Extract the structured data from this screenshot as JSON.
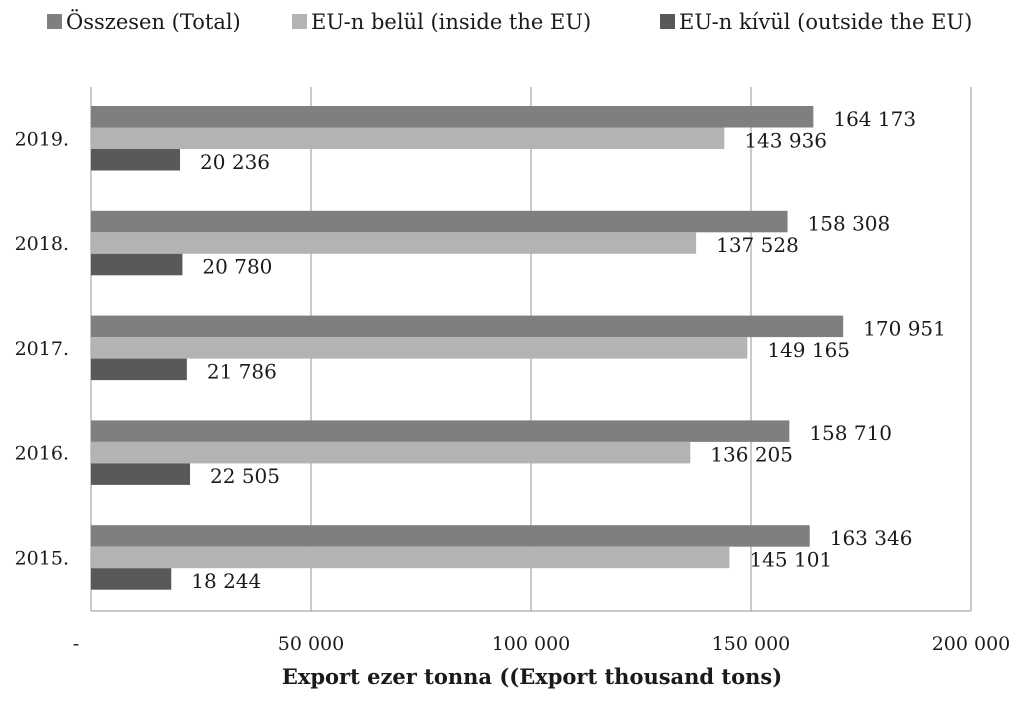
{
  "chart_data": {
    "type": "bar",
    "orientation": "horizontal",
    "title": "",
    "xlabel": "Export ezer tonna ((Export thousand tons)",
    "ylabel": "",
    "xlim": [
      0,
      200000
    ],
    "x_ticks": [
      0,
      50000,
      100000,
      150000,
      200000
    ],
    "x_tick_labels": [
      "-",
      "50 000",
      "100 000",
      "150 000",
      "200 000"
    ],
    "grid": "vertical",
    "legend_position": "top",
    "categories": [
      "2019.",
      "2018.",
      "2017.",
      "2016.",
      "2015."
    ],
    "series": [
      {
        "name": "Összesen (Total)",
        "color": "#7f7f7f",
        "values": [
          164173,
          158308,
          170951,
          158710,
          163346
        ],
        "labels": [
          "164 173",
          "158 308",
          "170 951",
          "158 710",
          "163 346"
        ]
      },
      {
        "name": "EU-n belül (inside the EU)",
        "color": "#b3b3b3",
        "values": [
          143936,
          137528,
          149165,
          136205,
          145101
        ],
        "labels": [
          "143 936",
          "137 528",
          "149 165",
          "136 205",
          "145 101"
        ]
      },
      {
        "name": "EU-n kívül (outside the EU)",
        "color": "#595959",
        "values": [
          20236,
          20780,
          21786,
          22505,
          18244
        ],
        "labels": [
          "20 236",
          "20 780",
          "21 786",
          "22 505",
          "18 244"
        ]
      }
    ]
  }
}
